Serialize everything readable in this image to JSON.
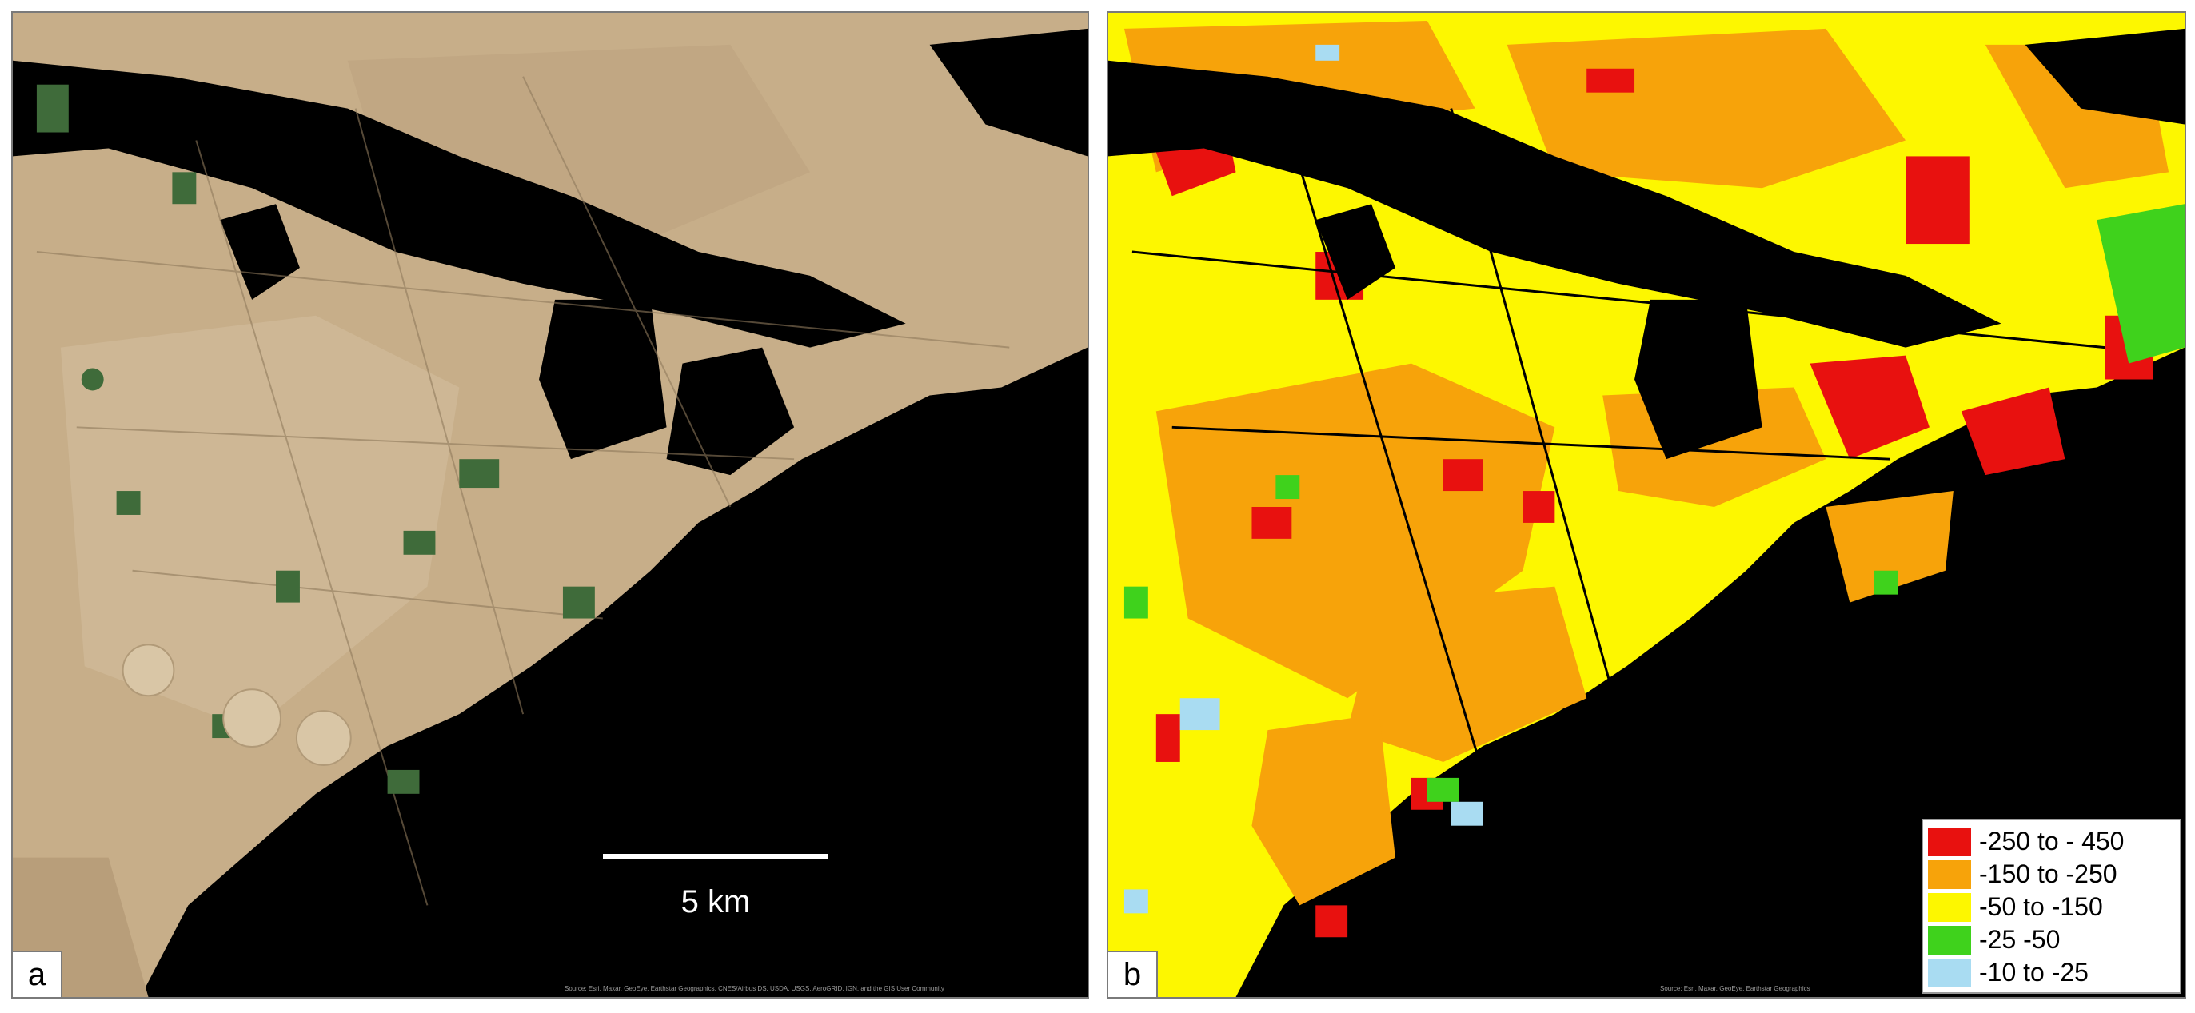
{
  "panels": [
    {
      "id": "a",
      "label": "a",
      "description_type": "satellite-imagery",
      "scale_bar": {
        "label": "5 km"
      },
      "attribution": "Source: Esri, Maxar, GeoEye, Earthstar Geographics, CNES/Airbus DS, USDA, USGS, AeroGRID, IGN, and the GIS User Community"
    },
    {
      "id": "b",
      "label": "b",
      "description_type": "classified-map",
      "attribution": "Source: Esri, Maxar, GeoEye, Earthstar Geographics",
      "legend": {
        "items": [
          {
            "label": "-250 to - 450",
            "color": "#e8110f"
          },
          {
            "label": "-150 to -250",
            "color": "#f7a30a"
          },
          {
            "label": "-50 to -150",
            "color": "#fdf700"
          },
          {
            "label": "-25 -50",
            "color": "#3fd21c"
          },
          {
            "label": "-10 to -25",
            "color": "#a9dcf2"
          }
        ]
      }
    }
  ],
  "colors": {
    "background": "#000000",
    "field_tan": "#c9b08c",
    "field_tan_light": "#d6c2a2",
    "field_green": "#3f6b3a",
    "frame": "#7a7a7a"
  }
}
